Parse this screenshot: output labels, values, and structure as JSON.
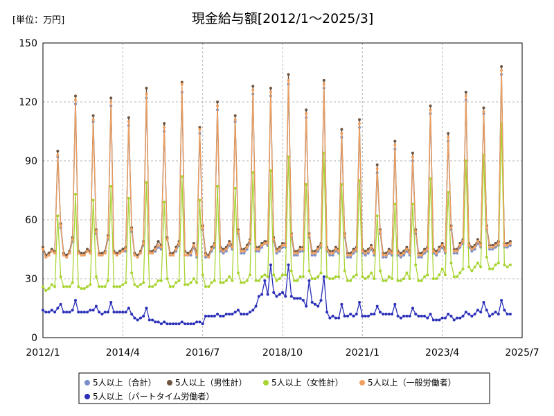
{
  "chart_data": {
    "type": "line",
    "title": "現金給与額[2012/1～2025/3]",
    "unit_label": "[単位：万円]",
    "xlabel": "",
    "ylabel": "",
    "x_start": "2012/1",
    "x_end": "2025/3",
    "xlim": [
      "2012/1",
      "2025/7"
    ],
    "ylim": [
      0,
      150
    ],
    "x_ticks": [
      "2012/1",
      "2014/4",
      "2016/7",
      "2018/10",
      "2021/1",
      "2023/4",
      "2025/7"
    ],
    "y_ticks": [
      0,
      30,
      60,
      90,
      120,
      150
    ],
    "grid": true,
    "legend_position": "bottom",
    "series": [
      {
        "name": "5人以上（合計）",
        "color": "#7a8ec9",
        "values": [
          45.0,
          41.0,
          42.0,
          44.0,
          43.0,
          92.0,
          56.0,
          42.0,
          41.0,
          43.0,
          49.0,
          119.0,
          43.0,
          42.0,
          42.0,
          44.0,
          43.0,
          110.0,
          53.0,
          42.0,
          42.0,
          43.0,
          50.0,
          118.0,
          43.0,
          42.0,
          43.0,
          44.0,
          44.0,
          108.0,
          54.0,
          42.0,
          41.0,
          43.0,
          47.0,
          122.0,
          43.0,
          43.0,
          44.0,
          46.0,
          45.0,
          105.0,
          50.0,
          42.0,
          42.0,
          44.0,
          47.0,
          125.0,
          42.0,
          42.0,
          42.0,
          46.0,
          41.0,
          104.0,
          55.0,
          41.0,
          41.0,
          44.0,
          46.0,
          116.0,
          44.0,
          43.0,
          44.0,
          47.0,
          45.0,
          110.0,
          53.0,
          43.0,
          43.0,
          45.0,
          48.0,
          124.0,
          44.0,
          44.0,
          46.0,
          48.0,
          47.0,
          123.0,
          49.0,
          43.0,
          44.0,
          46.0,
          46.0,
          129.0,
          51.0,
          42.0,
          42.0,
          44.0,
          44.0,
          112.0,
          51.0,
          42.0,
          42.0,
          44.0,
          46.0,
          127.0,
          44.0,
          42.0,
          42.0,
          44.0,
          43.0,
          102.0,
          51.0,
          41.0,
          41.0,
          43.0,
          44.0,
          107.0,
          43.0,
          42.0,
          43.0,
          45.0,
          42.0,
          84.0,
          53.0,
          41.0,
          41.0,
          43.0,
          42.0,
          96.0,
          42.0,
          41.0,
          42.0,
          44.0,
          42.0,
          90.0,
          53.0,
          41.0,
          41.0,
          43.0,
          44.0,
          114.0,
          43.0,
          42.0,
          44.0,
          46.0,
          43.0,
          100.0,
          55.0,
          43.0,
          43.0,
          46.0,
          48.0,
          121.0,
          46.0,
          44.0,
          45.0,
          48.0,
          46.0,
          114.0,
          55.0,
          45.0,
          45.0,
          46.0,
          47.0,
          134.0,
          46.0,
          46.0,
          47.0
        ]
      },
      {
        "name": "5人以上（男性計）",
        "color": "#6e5440",
        "values": [
          46.0,
          42.0,
          43.0,
          45.0,
          44.0,
          95.0,
          58.0,
          43.0,
          42.0,
          44.0,
          51.0,
          123.0,
          44.0,
          43.0,
          43.0,
          45.0,
          44.0,
          113.0,
          55.0,
          43.0,
          43.0,
          44.0,
          52.0,
          122.0,
          44.0,
          43.0,
          44.0,
          45.0,
          46.0,
          112.0,
          56.0,
          43.0,
          42.0,
          44.0,
          49.0,
          127.0,
          44.0,
          44.0,
          46.0,
          49.0,
          47.0,
          109.0,
          51.0,
          43.0,
          43.0,
          46.0,
          49.0,
          130.0,
          44.0,
          43.0,
          44.0,
          48.0,
          43.0,
          107.0,
          57.0,
          43.0,
          42.0,
          46.0,
          48.0,
          120.0,
          46.0,
          45.0,
          46.0,
          49.0,
          47.0,
          113.0,
          55.0,
          45.0,
          45.0,
          47.0,
          50.0,
          128.0,
          46.0,
          46.0,
          48.0,
          49.0,
          49.0,
          127.0,
          51.0,
          45.0,
          46.0,
          48.0,
          48.0,
          134.0,
          53.0,
          44.0,
          44.0,
          46.0,
          46.0,
          116.0,
          53.0,
          44.0,
          44.0,
          46.0,
          48.0,
          131.0,
          46.0,
          44.0,
          44.0,
          46.0,
          45.0,
          106.0,
          53.0,
          43.0,
          43.0,
          45.0,
          46.0,
          111.0,
          45.0,
          44.0,
          45.0,
          47.0,
          44.0,
          88.0,
          55.0,
          43.0,
          43.0,
          45.0,
          44.0,
          100.0,
          44.0,
          43.0,
          44.0,
          46.0,
          44.0,
          94.0,
          55.0,
          43.0,
          43.0,
          45.0,
          46.0,
          118.0,
          45.0,
          44.0,
          46.0,
          48.0,
          45.0,
          104.0,
          57.0,
          45.0,
          45.0,
          48.0,
          50.0,
          125.0,
          48.0,
          46.0,
          47.0,
          50.0,
          48.0,
          117.0,
          57.0,
          47.0,
          47.0,
          48.0,
          49.0,
          138.0,
          48.0,
          48.0,
          49.0
        ]
      },
      {
        "name": "5人以上（女性計）",
        "color": "#a8d432",
        "values": [
          26.0,
          24.0,
          25.0,
          27.0,
          26.0,
          62.0,
          31.0,
          26.0,
          26.0,
          26.0,
          28.0,
          73.0,
          26.0,
          25.0,
          25.0,
          26.0,
          27.0,
          70.0,
          31.0,
          26.0,
          26.0,
          26.0,
          29.0,
          77.0,
          26.0,
          26.0,
          26.0,
          27.0,
          28.0,
          71.0,
          33.0,
          27.0,
          26.0,
          27.0,
          28.0,
          79.0,
          26.0,
          26.0,
          27.0,
          29.0,
          29.0,
          69.0,
          30.0,
          26.0,
          26.0,
          28.0,
          29.0,
          82.0,
          27.0,
          27.0,
          28.0,
          30.0,
          28.0,
          70.0,
          32.0,
          26.0,
          26.0,
          28.0,
          29.0,
          77.0,
          28.0,
          28.0,
          29.0,
          31.0,
          29.0,
          76.0,
          33.0,
          28.0,
          28.0,
          29.0,
          32.0,
          84.0,
          29.0,
          29.0,
          31.0,
          32.0,
          31.0,
          85.0,
          32.0,
          29.0,
          30.0,
          32.0,
          32.0,
          92.0,
          34.0,
          29.0,
          29.0,
          31.0,
          31.0,
          78.0,
          34.0,
          30.0,
          30.0,
          31.0,
          33.0,
          94.0,
          31.0,
          30.0,
          30.0,
          31.0,
          31.0,
          78.0,
          34.0,
          29.0,
          29.0,
          31.0,
          32.0,
          80.0,
          31.0,
          30.0,
          31.0,
          33.0,
          30.0,
          62.0,
          34.0,
          29.0,
          29.0,
          31.0,
          30.0,
          68.0,
          29.0,
          29.0,
          30.0,
          33.0,
          30.0,
          68.0,
          37.0,
          29.0,
          29.0,
          31.0,
          32.0,
          81.0,
          30.0,
          30.0,
          32.0,
          35.0,
          32.0,
          74.0,
          38.0,
          31.0,
          31.0,
          33.0,
          35.0,
          90.0,
          36.0,
          34.0,
          36.0,
          38.0,
          36.0,
          93.0,
          41.0,
          35.0,
          35.0,
          37.0,
          38.0,
          109.0,
          37.0,
          36.0,
          37.0
        ]
      },
      {
        "name": "5人以上（一般労働者）",
        "color": "#f0a060",
        "values": [
          45.0,
          41.0,
          42.0,
          44.0,
          43.0,
          93.0,
          57.0,
          42.0,
          41.0,
          43.0,
          50.0,
          121.0,
          43.0,
          42.0,
          42.0,
          44.0,
          43.0,
          111.0,
          54.0,
          42.0,
          42.0,
          43.0,
          51.0,
          120.0,
          43.0,
          42.0,
          43.0,
          44.0,
          45.0,
          110.0,
          55.0,
          42.0,
          41.0,
          43.0,
          48.0,
          124.0,
          43.0,
          43.0,
          45.0,
          47.0,
          46.0,
          107.0,
          50.0,
          42.0,
          42.0,
          45.0,
          48.0,
          129.0,
          42.0,
          42.0,
          43.0,
          47.0,
          42.0,
          106.0,
          56.0,
          42.0,
          41.0,
          45.0,
          47.0,
          118.0,
          45.0,
          44.0,
          45.0,
          48.0,
          46.0,
          111.0,
          54.0,
          44.0,
          44.0,
          46.0,
          49.0,
          126.0,
          45.0,
          45.0,
          47.0,
          48.0,
          48.0,
          125.0,
          50.0,
          44.0,
          45.0,
          47.0,
          47.0,
          131.0,
          52.0,
          43.0,
          43.0,
          45.0,
          45.0,
          114.0,
          52.0,
          43.0,
          43.0,
          45.0,
          47.0,
          129.0,
          45.0,
          43.0,
          43.0,
          45.0,
          44.0,
          104.0,
          52.0,
          42.0,
          42.0,
          44.0,
          45.0,
          109.0,
          44.0,
          43.0,
          44.0,
          46.0,
          43.0,
          86.0,
          54.0,
          42.0,
          42.0,
          44.0,
          43.0,
          98.0,
          43.0,
          42.0,
          43.0,
          45.0,
          43.0,
          92.0,
          54.0,
          42.0,
          42.0,
          44.0,
          45.0,
          116.0,
          44.0,
          43.0,
          45.0,
          47.0,
          44.0,
          102.0,
          56.0,
          44.0,
          44.0,
          47.0,
          49.0,
          123.0,
          47.0,
          45.0,
          46.0,
          49.0,
          47.0,
          115.0,
          56.0,
          46.0,
          46.0,
          47.0,
          48.0,
          136.0,
          47.0,
          47.0,
          48.0
        ]
      },
      {
        "name": "5人以上（パートタイム労働者）",
        "color": "#2a2fb8",
        "values": [
          14.0,
          13.0,
          13.0,
          14.0,
          13.0,
          15.0,
          17.0,
          13.0,
          13.0,
          13.0,
          14.0,
          19.0,
          13.0,
          13.0,
          13.0,
          13.0,
          14.0,
          14.0,
          16.0,
          13.0,
          12.0,
          13.0,
          13.0,
          18.0,
          13.0,
          13.0,
          13.0,
          13.0,
          13.0,
          15.0,
          12.0,
          10.0,
          9.0,
          10.0,
          11.0,
          15.0,
          9.0,
          9.0,
          8.0,
          8.0,
          7.0,
          8.0,
          7.0,
          7.0,
          7.0,
          7.0,
          7.0,
          8.0,
          7.0,
          7.0,
          7.0,
          7.0,
          8.0,
          8.0,
          7.0,
          11.0,
          11.0,
          11.0,
          11.0,
          12.0,
          11.0,
          11.0,
          12.0,
          12.0,
          12.0,
          13.0,
          14.0,
          12.0,
          12.0,
          12.0,
          13.0,
          14.0,
          16.0,
          21.0,
          22.0,
          29.0,
          22.0,
          37.0,
          23.0,
          21.0,
          22.0,
          23.0,
          21.0,
          37.0,
          21.0,
          20.0,
          20.0,
          20.0,
          19.0,
          16.0,
          29.0,
          18.0,
          17.0,
          16.0,
          19.0,
          31.0,
          13.0,
          10.0,
          11.0,
          10.0,
          10.0,
          17.0,
          11.0,
          11.0,
          12.0,
          11.0,
          12.0,
          18.0,
          11.0,
          11.0,
          11.0,
          12.0,
          12.0,
          16.0,
          13.0,
          12.0,
          12.0,
          12.0,
          12.0,
          17.0,
          11.0,
          10.0,
          11.0,
          11.0,
          11.0,
          15.0,
          12.0,
          11.0,
          11.0,
          11.0,
          10.0,
          12.0,
          9.0,
          9.0,
          9.0,
          10.0,
          10.0,
          12.0,
          11.0,
          9.0,
          10.0,
          10.0,
          11.0,
          13.0,
          12.0,
          11.0,
          12.0,
          14.0,
          13.0,
          18.0,
          14.0,
          11.0,
          12.0,
          13.0,
          12.0,
          19.0,
          14.0,
          12.0,
          12.0
        ]
      }
    ]
  }
}
